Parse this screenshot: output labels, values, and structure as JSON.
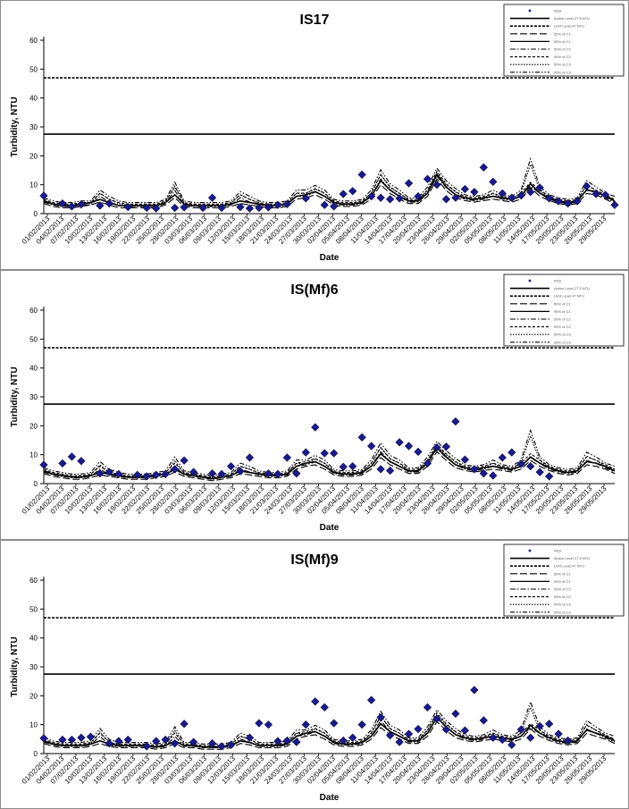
{
  "dates": [
    "01/02/2013",
    "04/02/2013",
    "07/02/2013",
    "10/02/2013",
    "13/02/2013",
    "16/02/2013",
    "19/02/2013",
    "22/02/2013",
    "25/02/2013",
    "28/02/2013",
    "03/03/2013",
    "06/03/2013",
    "09/03/2013",
    "12/03/2013",
    "15/03/2013",
    "18/03/2013",
    "21/03/2013",
    "24/03/2013",
    "27/03/2013",
    "30/03/2013",
    "02/04/2013",
    "05/04/2013",
    "08/04/2013",
    "11/04/2013",
    "14/04/2013",
    "17/04/2013",
    "20/04/2013",
    "23/04/2013",
    "26/04/2013",
    "29/04/2013",
    "02/05/2013",
    "05/05/2013",
    "08/05/2013",
    "11/05/2013",
    "14/05/2013",
    "17/05/2013",
    "20/05/2013",
    "23/05/2013",
    "26/05/2013",
    "29/05/2013"
  ],
  "chart_data": [
    {
      "type": "line",
      "title": "IS17",
      "xlabel": "Date",
      "ylabel": "Turbidity, NTU",
      "ylim": [
        0,
        60
      ],
      "yticks": [
        "0",
        "10",
        "20",
        "30",
        "40",
        "50",
        "60"
      ],
      "hlines": [
        27.5,
        47
      ],
      "legend": [
        "WQI",
        "Action Level 27.5 NTU",
        "Limit Level 47 NTU",
        "50% of C1",
        "95% of C1",
        "50% of C2",
        "95% of C2",
        "50% of C3",
        "95% of C3"
      ],
      "observed": [
        [
          0,
          6.2
        ],
        [
          2,
          3.5
        ],
        [
          3,
          2.5
        ],
        [
          4,
          3.2
        ],
        [
          6,
          2.8
        ],
        [
          7,
          3.5
        ],
        [
          9,
          2.3
        ],
        [
          11,
          2
        ],
        [
          12,
          1.8
        ],
        [
          14,
          2
        ],
        [
          15,
          2.2
        ],
        [
          17,
          2
        ],
        [
          18,
          5.5
        ],
        [
          19,
          2
        ],
        [
          21,
          2.3
        ],
        [
          22,
          1.8
        ],
        [
          23,
          2
        ],
        [
          24,
          2.2
        ],
        [
          25,
          3
        ],
        [
          26,
          3.3
        ],
        [
          28,
          5.3
        ],
        [
          30,
          3
        ],
        [
          31,
          2.5
        ],
        [
          32,
          6.8
        ],
        [
          33,
          7.8
        ],
        [
          34,
          13.5
        ],
        [
          35,
          6
        ],
        [
          36,
          5.5
        ],
        [
          37,
          5
        ],
        [
          38,
          5.3
        ],
        [
          39,
          10.5
        ],
        [
          40,
          6
        ],
        [
          41,
          12
        ],
        [
          42,
          10
        ],
        [
          43,
          5
        ],
        [
          44,
          5.5
        ],
        [
          45,
          8.5
        ],
        [
          46,
          7.5
        ],
        [
          47,
          16
        ],
        [
          48,
          11
        ],
        [
          49,
          7
        ],
        [
          50,
          5.5
        ],
        [
          51,
          6.3
        ],
        [
          52,
          7.5
        ],
        [
          53,
          9
        ],
        [
          54,
          5.3
        ],
        [
          55,
          4.3
        ],
        [
          56,
          3.5
        ],
        [
          57,
          4.3
        ],
        [
          58,
          9.5
        ],
        [
          59,
          6.8
        ],
        [
          60,
          6.5
        ],
        [
          61,
          3
        ]
      ],
      "curves": {
        "C1": [
          3.5,
          2.5,
          2,
          2,
          2.5,
          3,
          4,
          3,
          2,
          2,
          2,
          2,
          2,
          3,
          5.5,
          2.5,
          2,
          2,
          2,
          2,
          2.5,
          3.5,
          3,
          2.5,
          2,
          2,
          2.5,
          5,
          5.5,
          6.5,
          5,
          3,
          2.5,
          2.5,
          3,
          5,
          10,
          7,
          5,
          3.5,
          3.5,
          6,
          12,
          8,
          5.5,
          4.5,
          4,
          4.5,
          5,
          4.5,
          4,
          5,
          9,
          6,
          4.5,
          3.5,
          3,
          3.5,
          7,
          6.5,
          5,
          3.5
        ],
        "C2": [
          4,
          3,
          2.5,
          2.5,
          3,
          3,
          6,
          4,
          3,
          2.5,
          2.5,
          2.5,
          2.5,
          3.5,
          8,
          3,
          2.5,
          2.5,
          2.5,
          2.5,
          3,
          5.5,
          4,
          3,
          2.5,
          2.5,
          3,
          6,
          6,
          7.5,
          6,
          3.5,
          3,
          3,
          3.5,
          6,
          12,
          8,
          6,
          4,
          4,
          7,
          13,
          9,
          6.5,
          5,
          4.5,
          5,
          6,
          5,
          4.5,
          6,
          9.5,
          7,
          5,
          4,
          3.5,
          4,
          8.5,
          7,
          5.5,
          4
        ],
        "C3": [
          4.5,
          3.5,
          3,
          3,
          3.5,
          3.5,
          7,
          5,
          3.5,
          3,
          3,
          3,
          3,
          4,
          9.5,
          3.5,
          3,
          3,
          3,
          3,
          3.5,
          6.5,
          5,
          3.5,
          3,
          3,
          3.5,
          7,
          7,
          8.5,
          7,
          4,
          3.5,
          3.5,
          4,
          7,
          13.5,
          9,
          7,
          4.5,
          4.5,
          8,
          14,
          10,
          7.5,
          5.5,
          5,
          5.5,
          7,
          5.5,
          5,
          7,
          17,
          8,
          5.5,
          4.5,
          4,
          4.5,
          10,
          8,
          6,
          5
        ]
      }
    },
    {
      "type": "line",
      "title": "IS(Mf)6",
      "xlabel": "Date",
      "ylabel": "Turbidity, NTU",
      "ylim": [
        0,
        60
      ],
      "yticks": [
        "0",
        "10",
        "20",
        "30",
        "40",
        "50",
        "60"
      ],
      "hlines": [
        27.5,
        47
      ],
      "legend": [
        "WQI",
        "Action Level 27.5 NTU",
        "Limit Level 47 NTU",
        "50% of C1",
        "95% of C1",
        "50% of C2",
        "95% of C2",
        "50% of C3",
        "95% of C3"
      ],
      "observed": [
        [
          0,
          6.5
        ],
        [
          2,
          7
        ],
        [
          3,
          9.3
        ],
        [
          4,
          7.8
        ],
        [
          6,
          3.5
        ],
        [
          7,
          4
        ],
        [
          8,
          3.3
        ],
        [
          10,
          3
        ],
        [
          11,
          2.5
        ],
        [
          12,
          3
        ],
        [
          13,
          3.3
        ],
        [
          14,
          5
        ],
        [
          15,
          8
        ],
        [
          16,
          4
        ],
        [
          18,
          3.5
        ],
        [
          19,
          3.3
        ],
        [
          20,
          6
        ],
        [
          21,
          4.3
        ],
        [
          22,
          9
        ],
        [
          24,
          3.5
        ],
        [
          25,
          3.3
        ],
        [
          26,
          9
        ],
        [
          27,
          3.5
        ],
        [
          28,
          10.8
        ],
        [
          29,
          19.5
        ],
        [
          30,
          10.5
        ],
        [
          31,
          10.5
        ],
        [
          32,
          5.8
        ],
        [
          33,
          6
        ],
        [
          34,
          16
        ],
        [
          35,
          13
        ],
        [
          36,
          5
        ],
        [
          37,
          4.5
        ],
        [
          38,
          14.3
        ],
        [
          39,
          13
        ],
        [
          40,
          11
        ],
        [
          41,
          7
        ],
        [
          42,
          12.5
        ],
        [
          43,
          12.8
        ],
        [
          44,
          21.5
        ],
        [
          45,
          8.3
        ],
        [
          46,
          5
        ],
        [
          47,
          3.5
        ],
        [
          48,
          2.8
        ],
        [
          49,
          9
        ],
        [
          50,
          10.8
        ],
        [
          51,
          6.8
        ],
        [
          52,
          6
        ],
        [
          53,
          4
        ],
        [
          54,
          2.5
        ]
      ],
      "curves": {
        "C1": [
          3.5,
          2.5,
          2,
          1.5,
          1.5,
          2,
          3,
          2.5,
          2,
          1.5,
          1.5,
          1.5,
          2,
          2.5,
          4,
          2.5,
          2,
          1.5,
          1,
          1.5,
          2,
          3.5,
          3,
          2.5,
          2,
          2,
          2.5,
          5,
          6,
          6.5,
          5,
          3,
          2.5,
          2.5,
          3,
          5,
          9,
          6.5,
          5,
          3.5,
          3.5,
          6,
          11,
          8,
          5.5,
          4.5,
          4,
          4.5,
          5,
          4.5,
          4,
          5,
          8,
          6,
          4.5,
          3.5,
          3,
          3.5,
          6.5,
          6,
          5,
          3.5
        ],
        "C2": [
          4,
          3,
          2.5,
          2,
          2,
          2.5,
          5,
          3,
          2.5,
          2,
          2,
          2,
          2.5,
          3,
          6,
          3,
          2.5,
          2,
          1.5,
          2,
          2.5,
          5,
          4,
          3,
          2.5,
          2.5,
          3,
          6,
          6.5,
          7.5,
          6,
          3.5,
          3,
          3,
          3.5,
          6,
          11,
          7.5,
          6,
          4,
          4,
          7,
          12,
          9,
          6.5,
          5,
          4.5,
          5,
          6,
          5,
          4.5,
          6,
          9,
          7,
          5,
          4,
          3.5,
          4,
          8,
          7,
          5.5,
          4
        ],
        "C3": [
          4.5,
          3.5,
          3,
          2.5,
          2.5,
          3,
          6.5,
          4,
          3,
          2.5,
          2.5,
          2.5,
          3,
          3.5,
          8,
          3.5,
          3,
          2.5,
          2,
          2.5,
          3,
          6,
          5,
          3.5,
          3,
          3,
          3.5,
          7,
          7,
          8.5,
          7,
          4,
          3.5,
          3.5,
          4,
          7,
          12.5,
          8.5,
          7,
          4.5,
          4.5,
          8,
          13,
          10,
          7.5,
          5.5,
          5,
          5.5,
          7,
          5.5,
          5,
          7,
          16.5,
          8,
          5.5,
          4.5,
          4,
          4.5,
          9.5,
          8,
          6,
          5
        ]
      }
    },
    {
      "type": "line",
      "title": "IS(Mf)9",
      "xlabel": "Date",
      "ylabel": "Turbidity, NTU",
      "ylim": [
        0,
        60
      ],
      "yticks": [
        "0",
        "10",
        "20",
        "30",
        "40",
        "50",
        "60"
      ],
      "hlines": [
        27.5,
        47
      ],
      "legend": [
        "WQI",
        "Action Level 27.5 NTU",
        "Limit Level 47 NTU",
        "50% of C1",
        "95% of C1",
        "50% of C2",
        "95% of C2",
        "50% of C3",
        "95% of C3"
      ],
      "observed": [
        [
          0,
          5.3
        ],
        [
          2,
          4.8
        ],
        [
          3,
          4.8
        ],
        [
          4,
          5.5
        ],
        [
          5,
          5.8
        ],
        [
          7,
          3.5
        ],
        [
          8,
          4.3
        ],
        [
          9,
          4.8
        ],
        [
          11,
          2.5
        ],
        [
          12,
          4.3
        ],
        [
          13,
          4.8
        ],
        [
          14,
          3.5
        ],
        [
          15,
          10.3
        ],
        [
          16,
          4
        ],
        [
          18,
          3.5
        ],
        [
          19,
          2.5
        ],
        [
          20,
          3
        ],
        [
          22,
          5.5
        ],
        [
          23,
          10.5
        ],
        [
          24,
          10
        ],
        [
          25,
          4.3
        ],
        [
          26,
          4.5
        ],
        [
          27,
          4
        ],
        [
          28,
          10
        ],
        [
          29,
          18
        ],
        [
          30,
          16
        ],
        [
          31,
          10.5
        ],
        [
          32,
          4.5
        ],
        [
          33,
          5.5
        ],
        [
          34,
          10
        ],
        [
          35,
          18.5
        ],
        [
          36,
          12.5
        ],
        [
          37,
          6.3
        ],
        [
          38,
          4
        ],
        [
          39,
          6.8
        ],
        [
          40,
          8.5
        ],
        [
          41,
          16
        ],
        [
          42,
          12
        ],
        [
          43,
          8.3
        ],
        [
          44,
          13.8
        ],
        [
          45,
          8
        ],
        [
          46,
          22
        ],
        [
          47,
          11.5
        ],
        [
          48,
          5.5
        ],
        [
          49,
          4.8
        ],
        [
          50,
          3
        ],
        [
          51,
          8.3
        ],
        [
          52,
          5.5
        ],
        [
          53,
          9.5
        ],
        [
          54,
          10.3
        ],
        [
          55,
          6.8
        ],
        [
          56,
          4.5
        ]
      ],
      "curves": {
        "C1": [
          3.5,
          2.5,
          2,
          2,
          2,
          2.5,
          3.5,
          2.5,
          2,
          2,
          2,
          2,
          1.5,
          2,
          3.5,
          2,
          2,
          1.5,
          1.5,
          1.5,
          2,
          3.5,
          3,
          2,
          2,
          2,
          2.5,
          5,
          6,
          6.5,
          5,
          3,
          2.5,
          2.5,
          3,
          5,
          9,
          6.5,
          5,
          3.5,
          3.5,
          6,
          11,
          8,
          5.5,
          4.5,
          4,
          4.5,
          5,
          4.5,
          4,
          5,
          8.5,
          6,
          4.5,
          3.5,
          3,
          3.5,
          7,
          6,
          5,
          3.5
        ],
        "C2": [
          4,
          3,
          2.5,
          2.5,
          2.5,
          3,
          6,
          3,
          2.5,
          2.5,
          2.5,
          2.5,
          2,
          2.5,
          6,
          2.5,
          2.5,
          2,
          2,
          2,
          2.5,
          5,
          4,
          2.5,
          2.5,
          2.5,
          3,
          6,
          6.5,
          7.5,
          6,
          3.5,
          3,
          3,
          3.5,
          6,
          11.5,
          7.5,
          6,
          4,
          4,
          7,
          12.5,
          9,
          6.5,
          5,
          4.5,
          5,
          6,
          5,
          4.5,
          6,
          9,
          7,
          5,
          4,
          3.5,
          4,
          8.5,
          7,
          5.5,
          4
        ],
        "C3": [
          4.5,
          3.5,
          3,
          3,
          3,
          3.5,
          7.5,
          4,
          3,
          3,
          3,
          3,
          2.5,
          3,
          8,
          3,
          3,
          2.5,
          2.5,
          2.5,
          3,
          6,
          5,
          3,
          3,
          3,
          3.5,
          7,
          7,
          8.5,
          7,
          4,
          3.5,
          3.5,
          4,
          7,
          13,
          8.5,
          7,
          4.5,
          4.5,
          8,
          13.5,
          10,
          7.5,
          5.5,
          5,
          5.5,
          7,
          5.5,
          5,
          7,
          16,
          8,
          5.5,
          4.5,
          4,
          4.5,
          10,
          8,
          6,
          5
        ]
      }
    }
  ]
}
